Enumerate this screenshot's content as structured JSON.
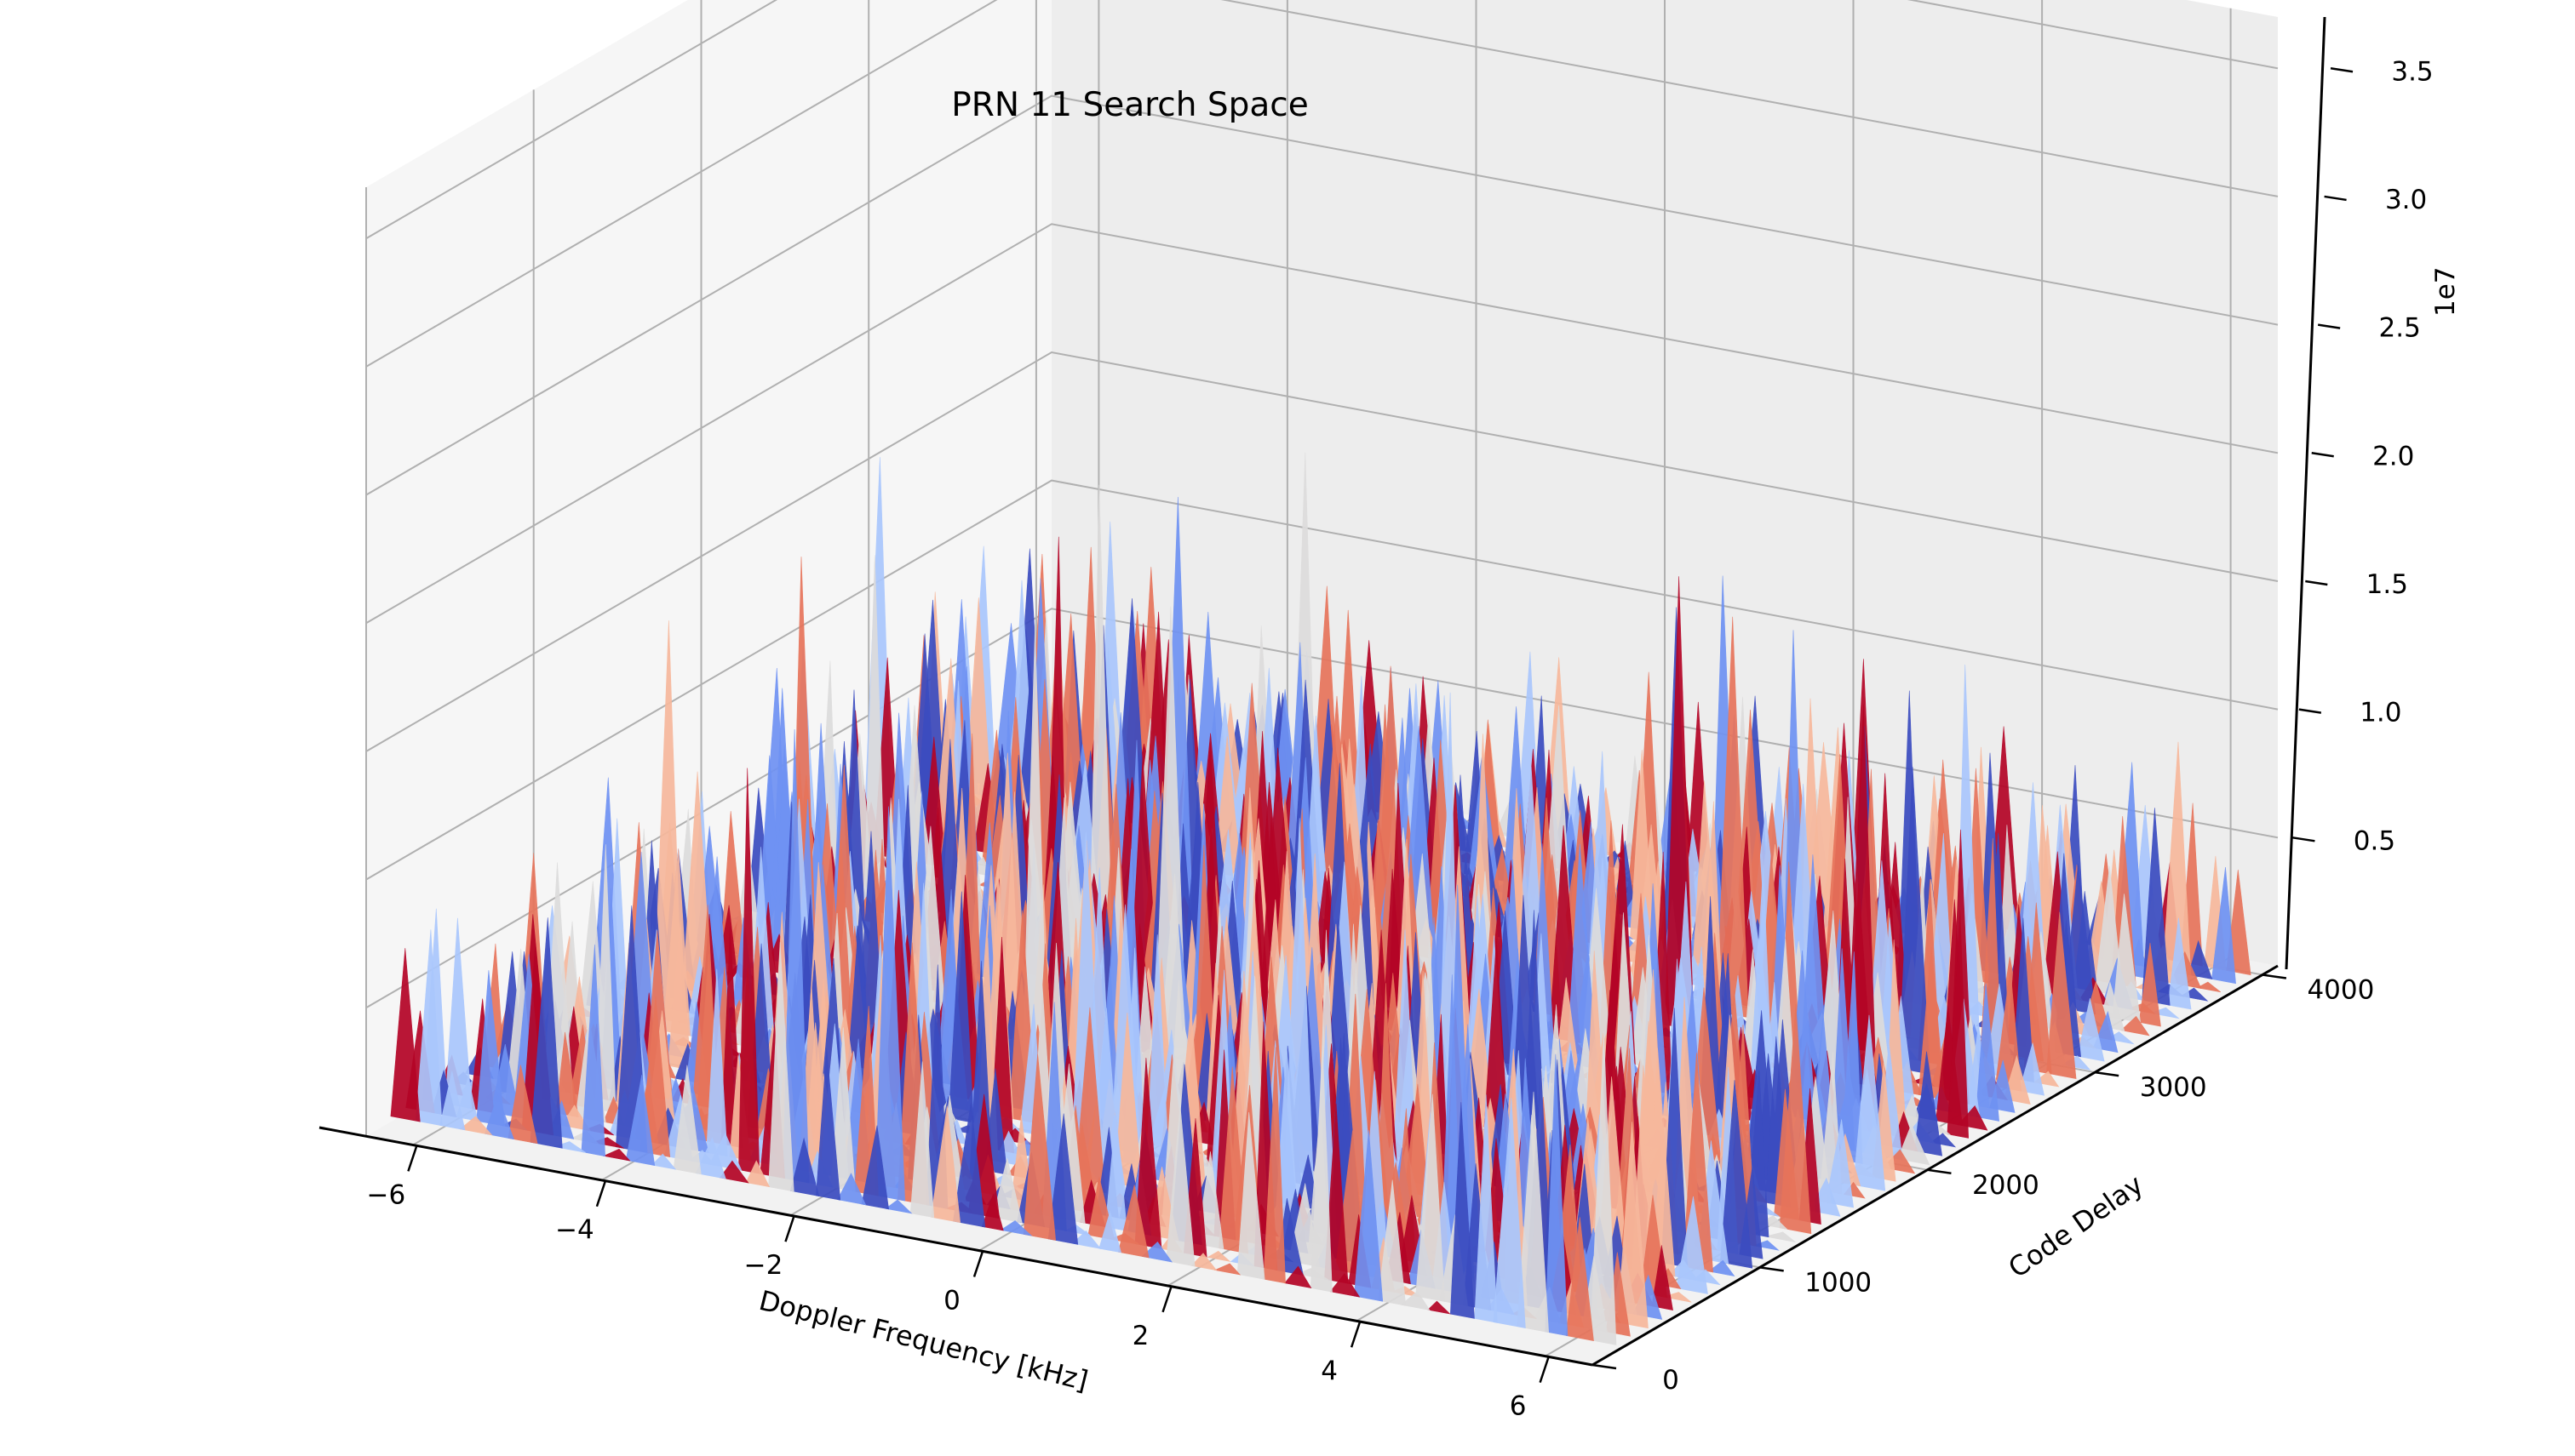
{
  "chart_data": {
    "type": "surface",
    "title": "PRN 11 Search Space",
    "xlabel": "Doppler Frequency [kHz]",
    "ylabel": "Code Delay",
    "zlabel": "",
    "z_offset_text": "1e7",
    "x_ticks": [
      "−6",
      "−4",
      "−2",
      "0",
      "2",
      "4",
      "6"
    ],
    "x_tick_values": [
      -6,
      -4,
      -2,
      0,
      2,
      4,
      6
    ],
    "y_ticks": [
      "0",
      "1000",
      "2000",
      "3000",
      "4000"
    ],
    "y_tick_values": [
      0,
      1000,
      2000,
      3000,
      4000
    ],
    "z_ticks": [
      "0.5",
      "1.0",
      "1.5",
      "2.0",
      "2.5",
      "3.0",
      "3.5"
    ],
    "z_tick_values": [
      0.5,
      1.0,
      1.5,
      2.0,
      2.5,
      3.0,
      3.5
    ],
    "xlim": [
      -6.5,
      6.5
    ],
    "ylim": [
      0,
      4092
    ],
    "zlim": [
      0,
      3.7
    ],
    "z_units_multiplier": 10000000,
    "colormap": "coolwarm",
    "colormap_colors": [
      "#3b4cc0",
      "#6f92f3",
      "#aac7fd",
      "#dddcdc",
      "#f7b89c",
      "#e7745b",
      "#b40426"
    ],
    "grid": true,
    "surface_summary": {
      "description_values": "noise-like correlation surface",
      "typical_peak_range": [
        0.3,
        1.0
      ],
      "max_visible_peak": 1.8,
      "floor": 0.05
    }
  }
}
